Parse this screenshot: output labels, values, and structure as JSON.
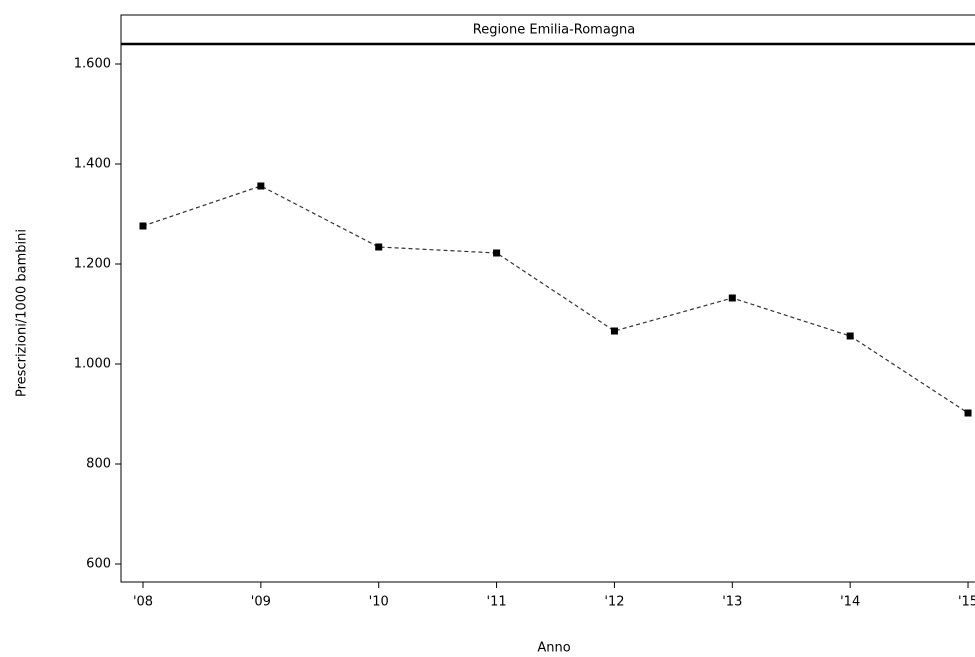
{
  "chart_data": {
    "type": "line",
    "title": "Regione Emilia-Romagna",
    "x_label": "Anno",
    "y_label": "Prescrizioni/1000 bambini",
    "categories": [
      "'08",
      "'09",
      "'10",
      "'11",
      "'12",
      "'13",
      "'14",
      "'15"
    ],
    "values": [
      1276,
      1356,
      1234,
      1222,
      1066,
      1132,
      1056,
      902
    ],
    "color": "#333333",
    "marker_color": "#000000",
    "ylim": [
      564,
      1640
    ],
    "yticks": [
      600,
      800,
      {
        "value": 1000,
        "label": "1.000"
      },
      {
        "value": 1200,
        "label": "1.200"
      },
      {
        "value": 1400,
        "label": "1.400"
      },
      {
        "value": 1600,
        "label": "1.600"
      }
    ],
    "grid": false
  }
}
